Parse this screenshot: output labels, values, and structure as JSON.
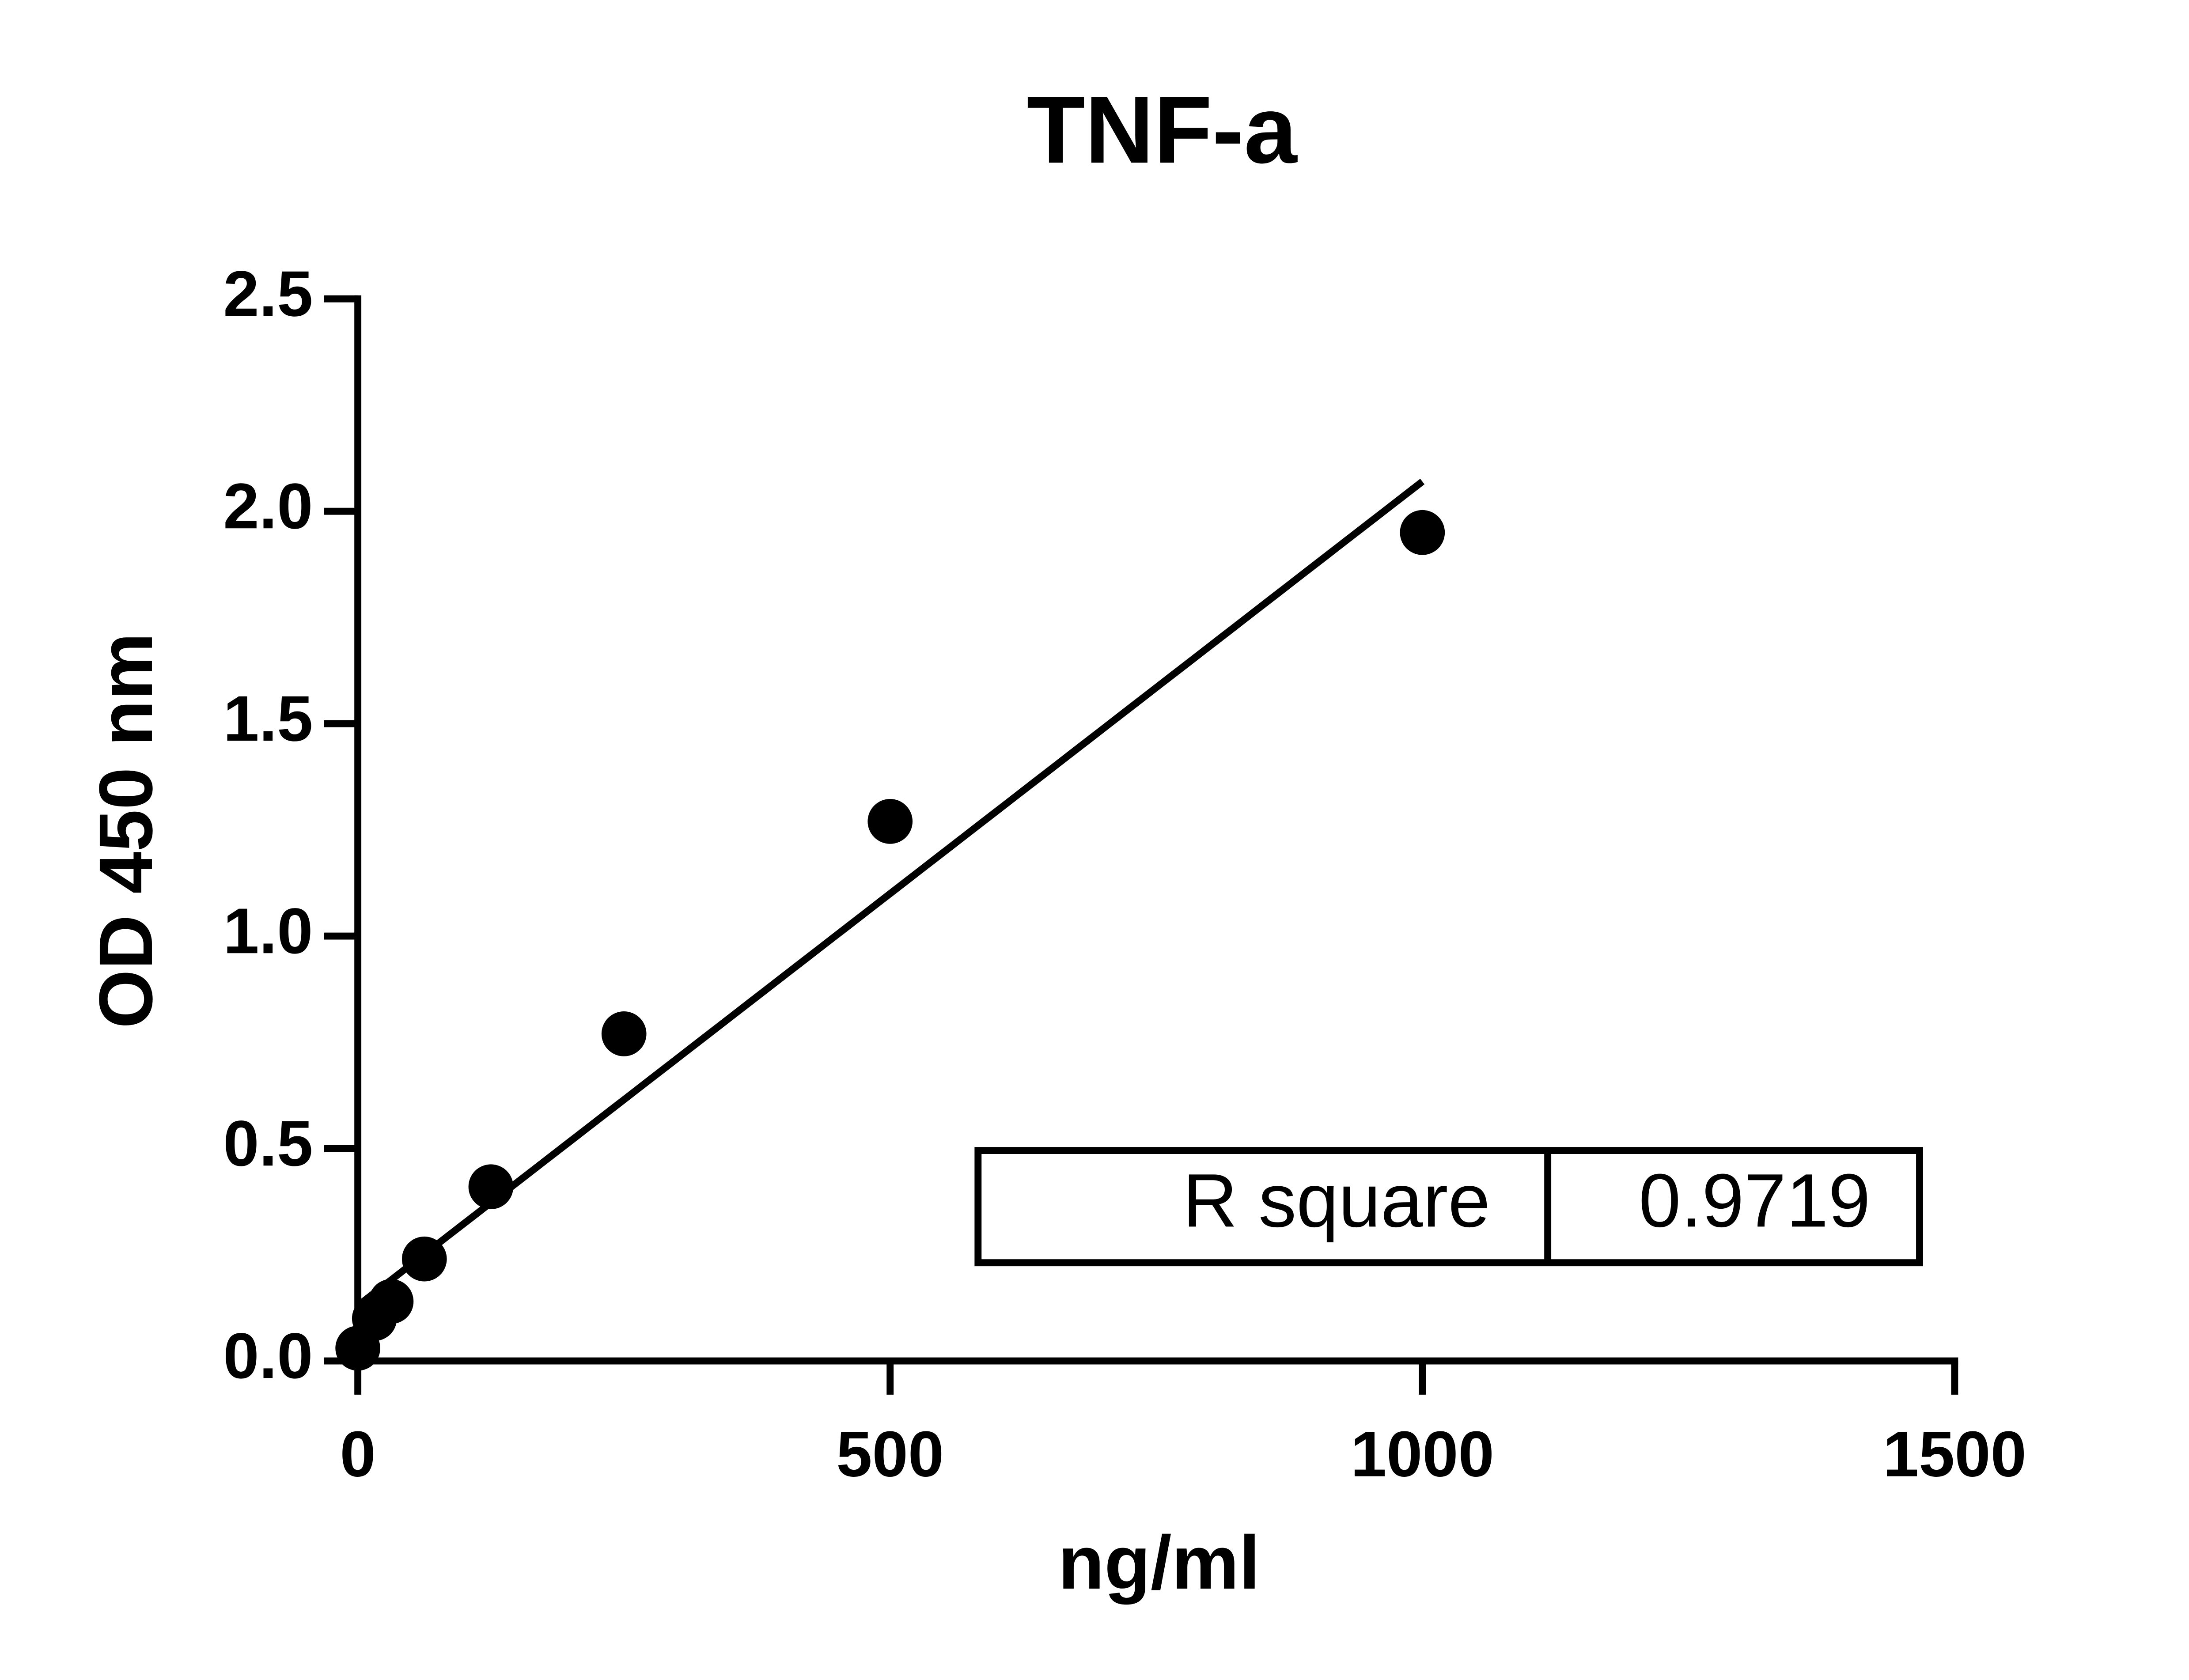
{
  "chart_data": {
    "type": "scatter",
    "title": "TNF-a",
    "x_label": "ng/ml",
    "y_label": "OD 450 nm",
    "series": [
      {
        "name": "TNF-a",
        "color": "#000000",
        "x": [
          0,
          15.6,
          31.25,
          62.5,
          125,
          250,
          500,
          1000
        ],
        "values": [
          0.03,
          0.1,
          0.14,
          0.24,
          0.41,
          0.77,
          1.27,
          1.95
        ]
      }
    ],
    "fit_line": {
      "x": [
        0,
        1000
      ],
      "values": [
        0.13,
        2.07
      ],
      "color": "#000000"
    },
    "r_square": {
      "label": "R square",
      "value": 0.9719
    },
    "xlim": [
      0,
      1500
    ],
    "xticks": [
      0,
      500,
      1000,
      1500
    ],
    "ylim": [
      0,
      2.5
    ],
    "yticks": [
      {
        "value": 0,
        "label": "0.0"
      },
      {
        "value": 0.5,
        "label": "0.5"
      },
      {
        "value": 1,
        "label": "1.0"
      },
      {
        "value": 1.5,
        "label": "1.5"
      },
      {
        "value": 2,
        "label": "2.0"
      },
      {
        "value": 2.5,
        "label": "2.5"
      }
    ],
    "grid": false
  }
}
